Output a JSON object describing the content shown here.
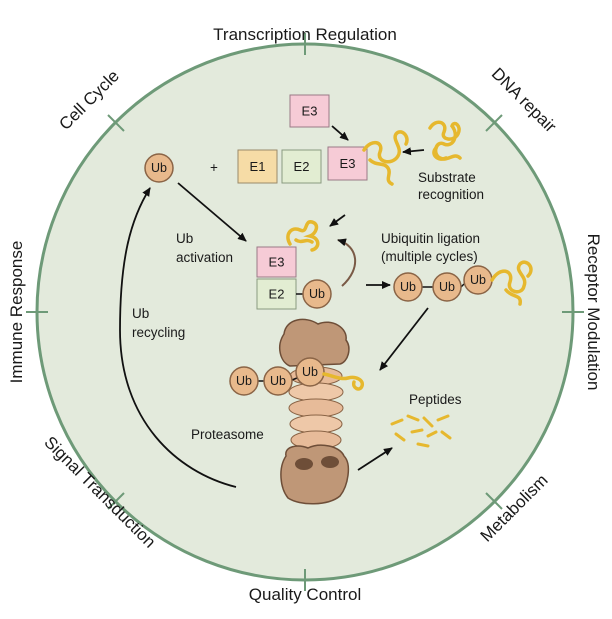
{
  "processes": {
    "top": "Transcription Regulation",
    "top_left": "Cell Cycle",
    "top_right": "DNA repair",
    "left": "Immune Response",
    "right": "Receptor Modulation",
    "bottom_left": "Signal Transduction",
    "bottom_right": "Metabolism",
    "bottom": "Quality Control"
  },
  "pathway": {
    "ub": "Ub",
    "plus": "+",
    "e1": "E1",
    "e2": "E2",
    "e3": "E3",
    "substrate_line1": "Substrate",
    "substrate_line2": "recognition",
    "activation_line1": "Ub",
    "activation_line2": "activation",
    "ligation_line1": "Ubiquitin ligation",
    "ligation_line2": "(multiple cycles)",
    "recycling_line1": "Ub",
    "recycling_line2": "recycling",
    "proteasome": "Proteasome",
    "peptides": "Peptides"
  },
  "colors": {
    "circle_fill": "#e3eadc",
    "circle_stroke": "#6e9a78",
    "e1_fill": "#f6dca6",
    "e2_fill": "#e2edd2",
    "e3_fill": "#f6cbd6",
    "ub_fill": "#e8b98c",
    "substrate": "#e6b82e",
    "proteasome": "#c89a78"
  }
}
